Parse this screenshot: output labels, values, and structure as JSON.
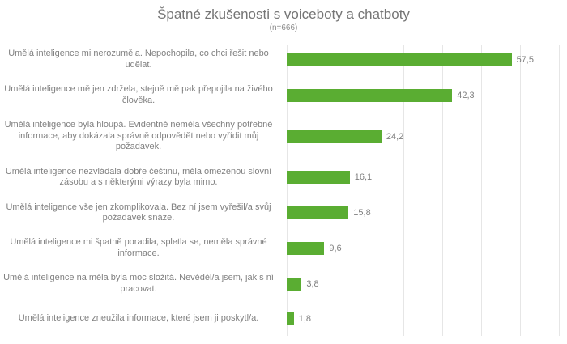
{
  "header": {
    "title": "Špatné zkušenosti s voiceboty a chatboty",
    "subtitle": "(n=666)"
  },
  "colors": {
    "bar": "#5aad32",
    "title_text": "#757575",
    "label_text": "#808080",
    "value_text": "#7f7f7f",
    "gridline": "#e6e6e6"
  },
  "chart_data": {
    "type": "bar",
    "orientation": "horizontal",
    "title": "Špatné zkušenosti s voiceboty a chatboty",
    "subtitle": "(n=666)",
    "categories": [
      "Umělá inteligence mi nerozuměla. Nepochopila, co chci řešit nebo udělat.",
      "Umělá inteligence mě jen zdržela, stejně mě pak přepojila na živého člověka.",
      "Umělá inteligence byla hloupá. Evidentně neměla všechny potřebné informace, aby dokázala správně odpovědět nebo vyřídit můj požadavek.",
      "Umělá inteligence nezvládala dobře češtinu, měla omezenou slovní zásobu a s některými výrazy byla mimo.",
      "Umělá inteligence vše jen zkomplikovala. Bez ní jsem vyřešil/a svůj požadavek snáze.",
      "Umělá inteligence mi špatně poradila, spletla se, neměla správné informace.",
      "Umělá inteligence na měla byla moc složitá. Nevěděl/a jsem, jak s ní pracovat.",
      "Umělá inteligence zneužila informace, které jsem ji poskytl/a."
    ],
    "values": [
      57.5,
      42.3,
      24.2,
      16.1,
      15.8,
      9.6,
      3.8,
      1.8
    ],
    "value_labels": [
      "57,5",
      "42,3",
      "24,2",
      "16,1",
      "15,8",
      "9,6",
      "3,8",
      "1,8"
    ],
    "xlim": [
      0,
      70
    ],
    "gridline_step": 10,
    "grid": "vertical-only",
    "legend": "none",
    "axis_tick_labels": "none"
  }
}
